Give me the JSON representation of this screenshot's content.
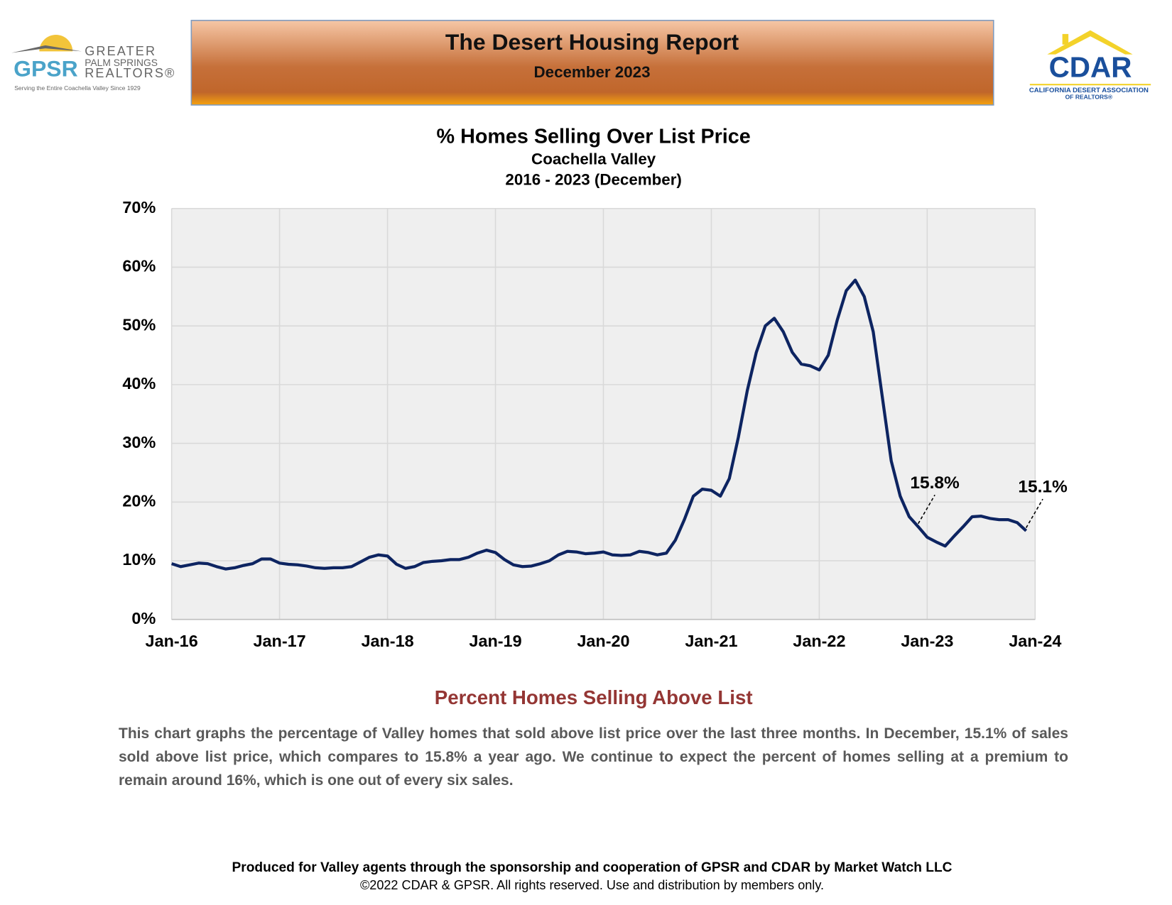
{
  "header": {
    "title": "The Desert Housing Report",
    "subtitle": "December 2023"
  },
  "logos": {
    "gpsr": {
      "mark": "GPSR",
      "line1": "GREATER",
      "line2": "PALM SPRINGS",
      "line3": "REALTORS®",
      "tagline": "Serving the Entire Coachella Valley Since 1929"
    },
    "cdar": {
      "mark": "CDAR",
      "line1": "CALIFORNIA DESERT ASSOCIATION",
      "line2": "OF REALTORS®"
    }
  },
  "chart_data": {
    "type": "line",
    "title": "% Homes Selling Over List Price",
    "subtitle": "Coachella Valley",
    "subtitle2": "2016 - 2023 (December)",
    "x": [
      "Jan-16",
      "Feb-16",
      "Mar-16",
      "Apr-16",
      "May-16",
      "Jun-16",
      "Jul-16",
      "Aug-16",
      "Sep-16",
      "Oct-16",
      "Nov-16",
      "Dec-16",
      "Jan-17",
      "Feb-17",
      "Mar-17",
      "Apr-17",
      "May-17",
      "Jun-17",
      "Jul-17",
      "Aug-17",
      "Sep-17",
      "Oct-17",
      "Nov-17",
      "Dec-17",
      "Jan-18",
      "Feb-18",
      "Mar-18",
      "Apr-18",
      "May-18",
      "Jun-18",
      "Jul-18",
      "Aug-18",
      "Sep-18",
      "Oct-18",
      "Nov-18",
      "Dec-18",
      "Jan-19",
      "Feb-19",
      "Mar-19",
      "Apr-19",
      "May-19",
      "Jun-19",
      "Jul-19",
      "Aug-19",
      "Sep-19",
      "Oct-19",
      "Nov-19",
      "Dec-19",
      "Jan-20",
      "Feb-20",
      "Mar-20",
      "Apr-20",
      "May-20",
      "Jun-20",
      "Jul-20",
      "Aug-20",
      "Sep-20",
      "Oct-20",
      "Nov-20",
      "Dec-20",
      "Jan-21",
      "Feb-21",
      "Mar-21",
      "Apr-21",
      "May-21",
      "Jun-21",
      "Jul-21",
      "Aug-21",
      "Sep-21",
      "Oct-21",
      "Nov-21",
      "Dec-21",
      "Jan-22",
      "Feb-22",
      "Mar-22",
      "Apr-22",
      "May-22",
      "Jun-22",
      "Jul-22",
      "Aug-22",
      "Sep-22",
      "Oct-22",
      "Nov-22",
      "Dec-22",
      "Jan-23",
      "Feb-23",
      "Mar-23",
      "Apr-23",
      "May-23",
      "Jun-23",
      "Jul-23",
      "Aug-23",
      "Sep-23",
      "Oct-23",
      "Nov-23",
      "Dec-23"
    ],
    "series": [
      {
        "name": "% Homes Selling Over List Price",
        "color": "#0d2461",
        "values": [
          9.5,
          9.0,
          9.3,
          9.6,
          9.5,
          9.0,
          8.6,
          8.8,
          9.2,
          9.5,
          10.3,
          10.3,
          9.6,
          9.4,
          9.3,
          9.1,
          8.8,
          8.7,
          8.8,
          8.8,
          9.0,
          9.8,
          10.6,
          11.0,
          10.8,
          9.4,
          8.7,
          9.0,
          9.7,
          9.9,
          10.0,
          10.2,
          10.2,
          10.6,
          11.3,
          11.8,
          11.4,
          10.2,
          9.3,
          9.0,
          9.1,
          9.5,
          10.0,
          11.0,
          11.6,
          11.5,
          11.2,
          11.3,
          11.5,
          11.0,
          10.9,
          11.0,
          11.6,
          11.4,
          11.0,
          11.3,
          13.5,
          17.0,
          21.0,
          22.2,
          22.0,
          21.0,
          24.0,
          31.0,
          39.0,
          45.5,
          50.0,
          51.3,
          49.0,
          45.5,
          43.5,
          43.2,
          42.5,
          45.0,
          51.0,
          56.0,
          57.8,
          55.0,
          49.0,
          38.0,
          27.0,
          21.0,
          17.5,
          15.8,
          14.0,
          13.2,
          12.5,
          14.2,
          15.8,
          17.5,
          17.6,
          17.2,
          17.0,
          17.0,
          16.5,
          15.1
        ]
      }
    ],
    "xlim": [
      "Jan-16",
      "Jan-24"
    ],
    "xticks": [
      "Jan-16",
      "Jan-17",
      "Jan-18",
      "Jan-19",
      "Jan-20",
      "Jan-21",
      "Jan-22",
      "Jan-23",
      "Jan-24"
    ],
    "ylim": [
      0,
      70
    ],
    "yticks": [
      {
        "value": 0,
        "label": "0%"
      },
      {
        "value": 10,
        "label": "10%"
      },
      {
        "value": 20,
        "label": "20%"
      },
      {
        "value": 30,
        "label": "30%"
      },
      {
        "value": 40,
        "label": "40%"
      },
      {
        "value": 50,
        "label": "50%"
      },
      {
        "value": 60,
        "label": "60%"
      },
      {
        "value": 70,
        "label": "70%"
      }
    ],
    "grid": true,
    "annotations": [
      {
        "label": "15.8%",
        "x": "Dec-22",
        "value": 15.8
      },
      {
        "label": "15.1%",
        "x": "Dec-23",
        "value": 15.1
      }
    ]
  },
  "section": {
    "heading": "Percent Homes Selling Above List",
    "body": "This chart graphs the percentage of Valley homes that sold above list price over the last three months. In December, 15.1% of sales sold above list price, which compares to 15.8% a year ago. We continue to expect the percent of homes selling at a premium to remain around 16%, which is one out of every six sales."
  },
  "footer": {
    "line1": "Produced for Valley agents through the sponsorship and cooperation of GPSR and CDAR by Market Watch LLC",
    "line2": "©2022 CDAR & GPSR.  All rights reserved.  Use and distribution by members only."
  }
}
